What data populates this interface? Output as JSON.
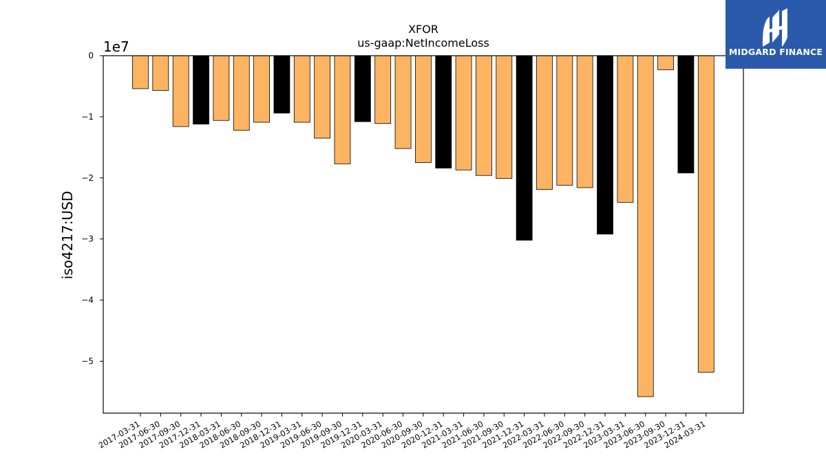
{
  "chart_data": {
    "type": "bar",
    "title": "XFOR",
    "subtitle": "us-gaap:NetIncomeLoss",
    "ylabel": "iso4217:USD",
    "xlabel": "",
    "y_offset_label": "1e7",
    "y_scale_factor": 10000000,
    "ylim": [
      -58500000,
      0
    ],
    "yticks": [
      0,
      -10000000,
      -20000000,
      -30000000,
      -40000000,
      -50000000
    ],
    "ytick_labels": [
      "0",
      "−1",
      "−2",
      "−3",
      "−4",
      "−5"
    ],
    "grid": false,
    "legend": "none",
    "colors": {
      "quarter": "#fdb462",
      "annual": "#000000",
      "edge": "#000000"
    },
    "categories": [
      "2017-03-31",
      "2017-06-30",
      "2017-09-30",
      "2017-12-31",
      "2018-03-31",
      "2018-06-30",
      "2018-09-30",
      "2018-12-31",
      "2019-03-31",
      "2019-06-30",
      "2019-09-30",
      "2019-12-31",
      "2020-03-31",
      "2020-06-30",
      "2020-09-30",
      "2020-12-31",
      "2021-03-31",
      "2021-06-30",
      "2021-09-30",
      "2021-12-31",
      "2022-03-31",
      "2022-06-30",
      "2022-09-30",
      "2022-12-31",
      "2023-03-31",
      "2023-06-30",
      "2023-09-30",
      "2023-12-31",
      "2024-03-31"
    ],
    "values": [
      -5400000,
      -5700000,
      -11600000,
      -11200000,
      -10600000,
      -12200000,
      -10900000,
      -9400000,
      -10900000,
      -13500000,
      -17700000,
      -10800000,
      -11100000,
      -15200000,
      -17500000,
      -18400000,
      -18700000,
      -19600000,
      -20100000,
      -30200000,
      -21900000,
      -21200000,
      -21600000,
      -29200000,
      -24000000,
      -55800000,
      -2300000,
      -19200000,
      -51800000
    ],
    "highlight": [
      false,
      false,
      false,
      true,
      false,
      false,
      false,
      true,
      false,
      false,
      false,
      true,
      false,
      false,
      false,
      true,
      false,
      false,
      false,
      true,
      false,
      false,
      false,
      true,
      false,
      false,
      false,
      true,
      false
    ]
  },
  "logo": {
    "text": "MIDGARD FINANCE",
    "icon": "midgard-logo-icon"
  }
}
